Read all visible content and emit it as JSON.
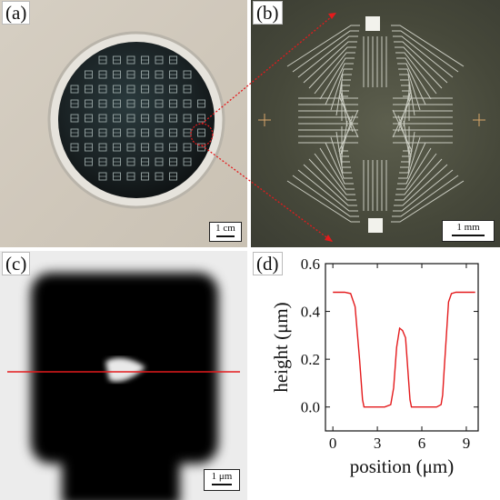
{
  "panels": {
    "a": {
      "label": "(a)",
      "scale": "1 cm"
    },
    "b": {
      "label": "(b)",
      "scale": "1 mm"
    },
    "c": {
      "label": "(c)",
      "scale": "1 μm"
    },
    "d": {
      "label": "(d)"
    }
  },
  "chart_data": {
    "type": "line",
    "xlabel": "position (μm)",
    "ylabel": "height (μm)",
    "xlim": [
      -0.5,
      9.8
    ],
    "ylim": [
      -0.1,
      0.6
    ],
    "xticks": [
      0,
      3,
      6,
      9
    ],
    "yticks": [
      0.0,
      0.2,
      0.4,
      0.6
    ],
    "series": [
      {
        "color": "#e41a1c",
        "x": [
          0,
          0.8,
          1.2,
          1.5,
          1.8,
          2.0,
          2.1,
          2.2,
          2.5,
          3.0,
          3.5,
          3.9,
          4.1,
          4.3,
          4.5,
          4.7,
          4.9,
          5.1,
          5.2,
          5.3,
          5.4,
          5.6,
          6.0,
          6.5,
          7.0,
          7.3,
          7.4,
          7.5,
          7.8,
          8.0,
          8.3,
          9.0,
          9.6
        ],
        "y": [
          0.48,
          0.48,
          0.475,
          0.42,
          0.2,
          0.03,
          0.0,
          0.0,
          0.0,
          0.0,
          0.0,
          0.01,
          0.08,
          0.25,
          0.33,
          0.32,
          0.29,
          0.12,
          0.03,
          0.0,
          0.0,
          0.0,
          0.0,
          0.0,
          0.0,
          0.01,
          0.05,
          0.15,
          0.44,
          0.475,
          0.48,
          0.48,
          0.48
        ]
      }
    ]
  }
}
